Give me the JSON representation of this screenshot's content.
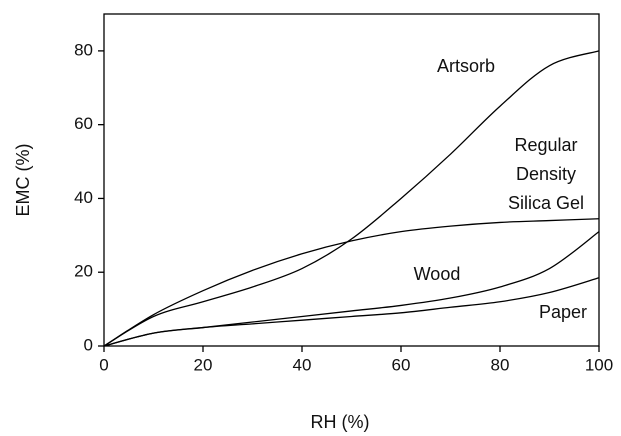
{
  "chart_data": {
    "type": "line",
    "x_label": "RH (%)",
    "y_label": "EMC (%)",
    "x": [
      0,
      10,
      20,
      30,
      40,
      50,
      60,
      70,
      80,
      90,
      100
    ],
    "series": [
      {
        "label": [
          "Artsorb"
        ],
        "color": "#000000",
        "values": [
          0,
          8,
          12,
          16,
          21,
          29,
          40,
          52,
          65,
          76,
          80
        ]
      },
      {
        "label": [
          "Regular",
          "Density",
          "Silica Gel"
        ],
        "color": "#000000",
        "values": [
          0,
          8.5,
          15,
          20.5,
          25,
          28.5,
          31,
          32.5,
          33.5,
          34,
          34.5
        ]
      },
      {
        "label": [
          "Wood"
        ],
        "color": "#000000",
        "values": [
          0,
          3.5,
          5,
          6.5,
          8,
          9.5,
          11,
          13,
          16,
          21,
          31
        ]
      },
      {
        "label": [
          "Paper"
        ],
        "color": "#000000",
        "values": [
          0,
          3.5,
          5,
          6,
          7,
          8,
          9,
          10.5,
          12,
          14.5,
          18.5
        ]
      }
    ],
    "xlim": [
      0,
      100
    ],
    "ylim": [
      0,
      90
    ],
    "xticks": [
      0,
      20,
      40,
      60,
      80,
      100
    ],
    "yticks": [
      0,
      20,
      40,
      60,
      80
    ]
  }
}
